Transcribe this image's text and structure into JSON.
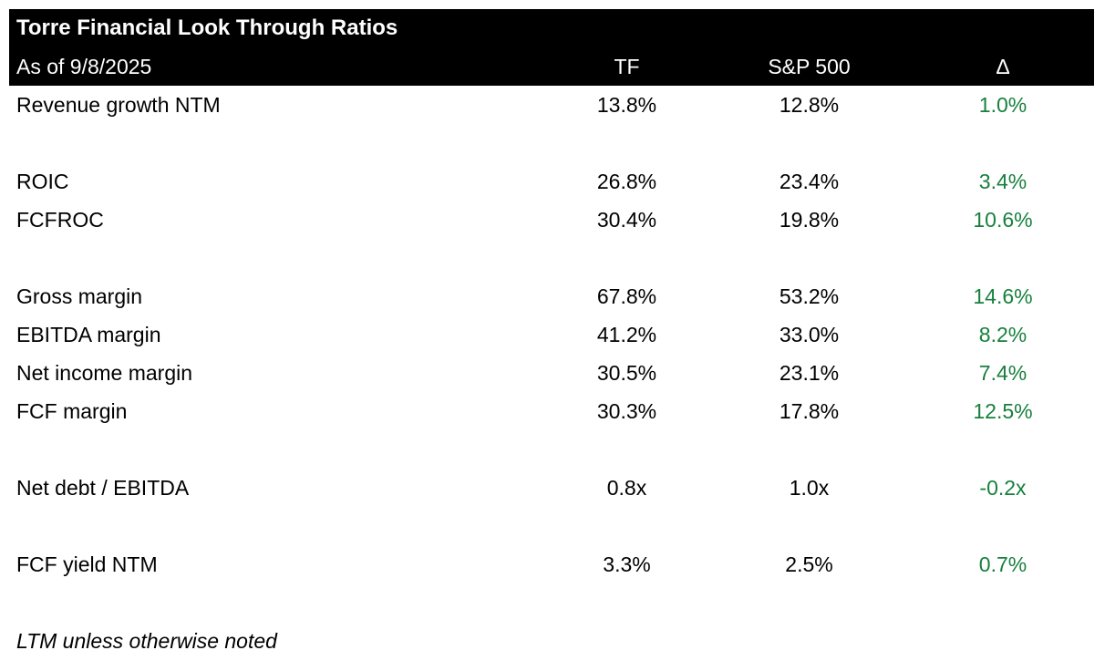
{
  "colors": {
    "background": "#ffffff",
    "header_bg": "#000000",
    "header_text": "#ffffff",
    "body_text": "#000000",
    "delta_positive": "#17803d"
  },
  "chart_data": {
    "type": "table",
    "title": "Torre Financial Look Through Ratios",
    "as_of_label": "As of 9/8/2025",
    "columns": [
      "TF",
      "S&P 500",
      "Δ"
    ],
    "rows": [
      {
        "label": "Revenue growth NTM",
        "tf": "13.8%",
        "sp500": "12.8%",
        "delta": "1.0%"
      },
      {
        "label": "ROIC",
        "tf": "26.8%",
        "sp500": "23.4%",
        "delta": "3.4%"
      },
      {
        "label": "FCFROC",
        "tf": "30.4%",
        "sp500": "19.8%",
        "delta": "10.6%"
      },
      {
        "label": "Gross margin",
        "tf": "67.8%",
        "sp500": "53.2%",
        "delta": "14.6%"
      },
      {
        "label": "EBITDA margin",
        "tf": "41.2%",
        "sp500": "33.0%",
        "delta": "8.2%"
      },
      {
        "label": "Net income margin",
        "tf": "30.5%",
        "sp500": "23.1%",
        "delta": "7.4%"
      },
      {
        "label": "FCF margin",
        "tf": "30.3%",
        "sp500": "17.8%",
        "delta": "12.5%"
      },
      {
        "label": "Net debt / EBITDA",
        "tf": "0.8x",
        "sp500": "1.0x",
        "delta": "-0.2x"
      },
      {
        "label": "FCF yield NTM",
        "tf": "3.3%",
        "sp500": "2.5%",
        "delta": "0.7%"
      }
    ],
    "footnote": "LTM unless otherwise noted",
    "layout": {
      "legend": "none",
      "grid": "off",
      "delta_color_meaning": "positive-vs-benchmark"
    }
  }
}
